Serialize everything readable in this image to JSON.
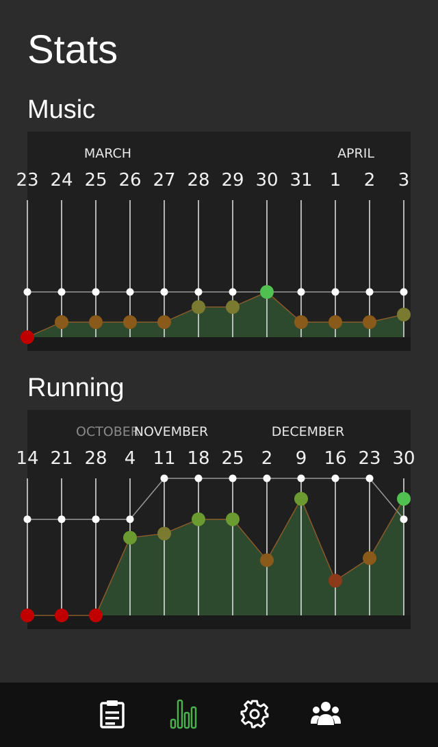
{
  "page": {
    "title": "Stats"
  },
  "colors": {
    "background": "#2c2c2c",
    "chart_background": "#1f1f1f",
    "area_fill": "#2e4a2e",
    "nav_background": "#111111",
    "nav_active": "#4caf50",
    "nav_inactive": "#ffffff",
    "point_scale": [
      "#c00000",
      "#8b3a1a",
      "#8a5a1a",
      "#7a7a30",
      "#6a9a30",
      "#50c050"
    ]
  },
  "charts": [
    {
      "id": "music",
      "title": "Music",
      "chart_data": {
        "type": "area",
        "months": [
          {
            "label": "MARCH",
            "at_index": 2.35,
            "dim": false
          },
          {
            "label": "APRIL",
            "at_index": 9.6,
            "dim": false
          }
        ],
        "x": [
          "23",
          "24",
          "25",
          "26",
          "27",
          "28",
          "29",
          "30",
          "31",
          "1",
          "2",
          "3"
        ],
        "series": [
          {
            "values": [
              0,
              1,
              1,
              1,
              1,
              2,
              2,
              3,
              1,
              1,
              1,
              1.5
            ]
          },
          {
            "values": [
              3,
              3,
              3,
              3,
              3,
              3,
              3,
              3,
              3,
              3,
              3,
              3
            ]
          }
        ],
        "ylim": [
          0,
          3
        ]
      }
    },
    {
      "id": "running",
      "title": "Running",
      "chart_data": {
        "type": "area",
        "months": [
          {
            "label": "OCTOBER",
            "at_index": 2.35,
            "dim": true
          },
          {
            "label": "NOVEMBER",
            "at_index": 4.2,
            "dim": false
          },
          {
            "label": "DECEMBER",
            "at_index": 8.2,
            "dim": false
          }
        ],
        "x": [
          "14",
          "21",
          "28",
          "4",
          "11",
          "18",
          "25",
          "2",
          "9",
          "16",
          "23",
          "30"
        ],
        "series": [
          {
            "values": [
              0,
              0,
              0,
              3.8,
              4.0,
              4.7,
              4.7,
              2.7,
              5.7,
              1.7,
              2.8,
              5.7
            ]
          },
          {
            "values": [
              4.7,
              4.7,
              4.7,
              4.7,
              6.7,
              6.7,
              6.7,
              6.7,
              6.7,
              6.7,
              6.7,
              4.7
            ]
          }
        ],
        "ylim": [
          0,
          6.7
        ]
      }
    }
  ],
  "nav": {
    "items": [
      {
        "name": "notes",
        "icon": "clipboard-icon",
        "active": false
      },
      {
        "name": "stats",
        "icon": "bar-chart-icon",
        "active": true
      },
      {
        "name": "settings",
        "icon": "gear-icon",
        "active": false
      },
      {
        "name": "people",
        "icon": "group-icon",
        "active": false
      }
    ]
  }
}
